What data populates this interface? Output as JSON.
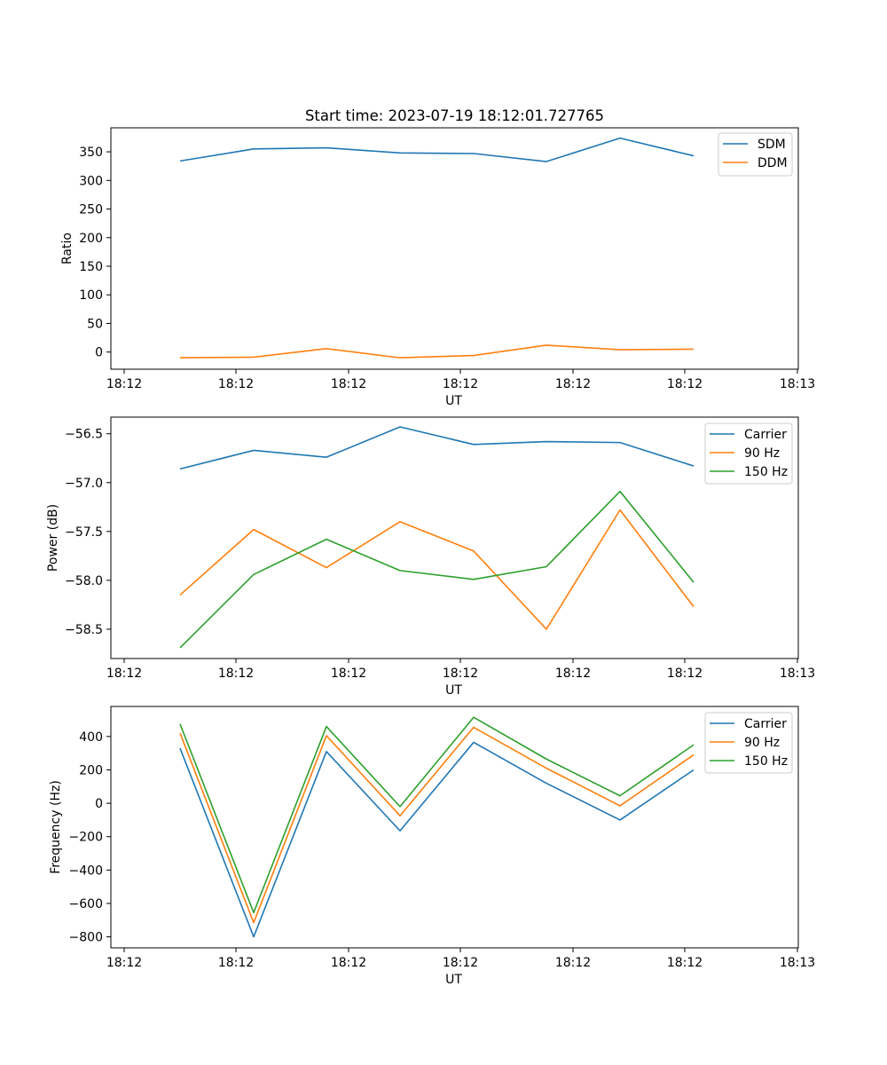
{
  "chart_data": [
    {
      "type": "line",
      "title": "Start time: 2023-07-19 18:12:01.727765",
      "xlabel": "UT",
      "ylabel": "Ratio",
      "x_tick_labels": [
        "18:12",
        "18:12",
        "18:12",
        "18:12",
        "18:12",
        "18:12",
        "18:13"
      ],
      "x": [
        1,
        2,
        3,
        4,
        5,
        6,
        7,
        8
      ],
      "xlim": [
        0.2,
        9.4
      ],
      "ylim": [
        -30,
        392
      ],
      "y_ticks": [
        0,
        50,
        100,
        150,
        200,
        250,
        300,
        350
      ],
      "grid": false,
      "legend_position": "upper right",
      "series": [
        {
          "name": "SDM",
          "color": "#1f77b4",
          "values": [
            334,
            355,
            357,
            348,
            347,
            333,
            374,
            343
          ]
        },
        {
          "name": "DDM",
          "color": "#ff7f0e",
          "values": [
            -10,
            -9,
            6,
            -10,
            -6,
            12,
            4,
            5
          ]
        }
      ]
    },
    {
      "type": "line",
      "title": "",
      "xlabel": "UT",
      "ylabel": "Power (dB)",
      "x_tick_labels": [
        "18:12",
        "18:12",
        "18:12",
        "18:12",
        "18:12",
        "18:12",
        "18:13"
      ],
      "x": [
        1,
        2,
        3,
        4,
        5,
        6,
        7,
        8
      ],
      "xlim": [
        0.2,
        9.4
      ],
      "ylim": [
        -58.8,
        -56.33
      ],
      "y_ticks": [
        -58.5,
        -58.0,
        -57.5,
        -57.0,
        -56.5
      ],
      "y_tick_labels": [
        "−58.5",
        "−58.0",
        "−57.5",
        "−57.0",
        "−56.5"
      ],
      "grid": false,
      "legend_position": "upper right",
      "series": [
        {
          "name": "Carrier",
          "color": "#1f77b4",
          "values": [
            -56.86,
            -56.67,
            -56.74,
            -56.43,
            -56.61,
            -56.58,
            -56.59,
            -56.83
          ]
        },
        {
          "name": "90 Hz",
          "color": "#ff7f0e",
          "values": [
            -58.15,
            -57.48,
            -57.87,
            -57.4,
            -57.7,
            -58.5,
            -57.28,
            -58.27
          ]
        },
        {
          "name": "150 Hz",
          "color": "#2ca02c",
          "values": [
            -58.69,
            -57.94,
            -57.58,
            -57.9,
            -57.99,
            -57.86,
            -57.09,
            -58.02
          ]
        }
      ]
    },
    {
      "type": "line",
      "title": "",
      "xlabel": "UT",
      "ylabel": "Frequency (Hz)",
      "x_tick_labels": [
        "18:12",
        "18:12",
        "18:12",
        "18:12",
        "18:12",
        "18:12",
        "18:13"
      ],
      "x": [
        1,
        2,
        3,
        4,
        5,
        6,
        7,
        8
      ],
      "xlim": [
        0.2,
        9.4
      ],
      "ylim": [
        -866,
        580
      ],
      "y_ticks": [
        -800,
        -600,
        -400,
        -200,
        0,
        200,
        400
      ],
      "y_tick_labels": [
        "−800",
        "−600",
        "−400",
        "−200",
        "0",
        "200",
        "400"
      ],
      "grid": false,
      "legend_position": "upper right",
      "series": [
        {
          "name": "Carrier",
          "color": "#1f77b4",
          "values": [
            330,
            -800,
            310,
            -165,
            365,
            120,
            -100,
            200
          ]
        },
        {
          "name": "90 Hz",
          "color": "#ff7f0e",
          "values": [
            420,
            -715,
            405,
            -75,
            455,
            210,
            -15,
            290
          ]
        },
        {
          "name": "150 Hz",
          "color": "#2ca02c",
          "values": [
            475,
            -655,
            460,
            -20,
            515,
            265,
            45,
            350
          ]
        }
      ]
    }
  ]
}
